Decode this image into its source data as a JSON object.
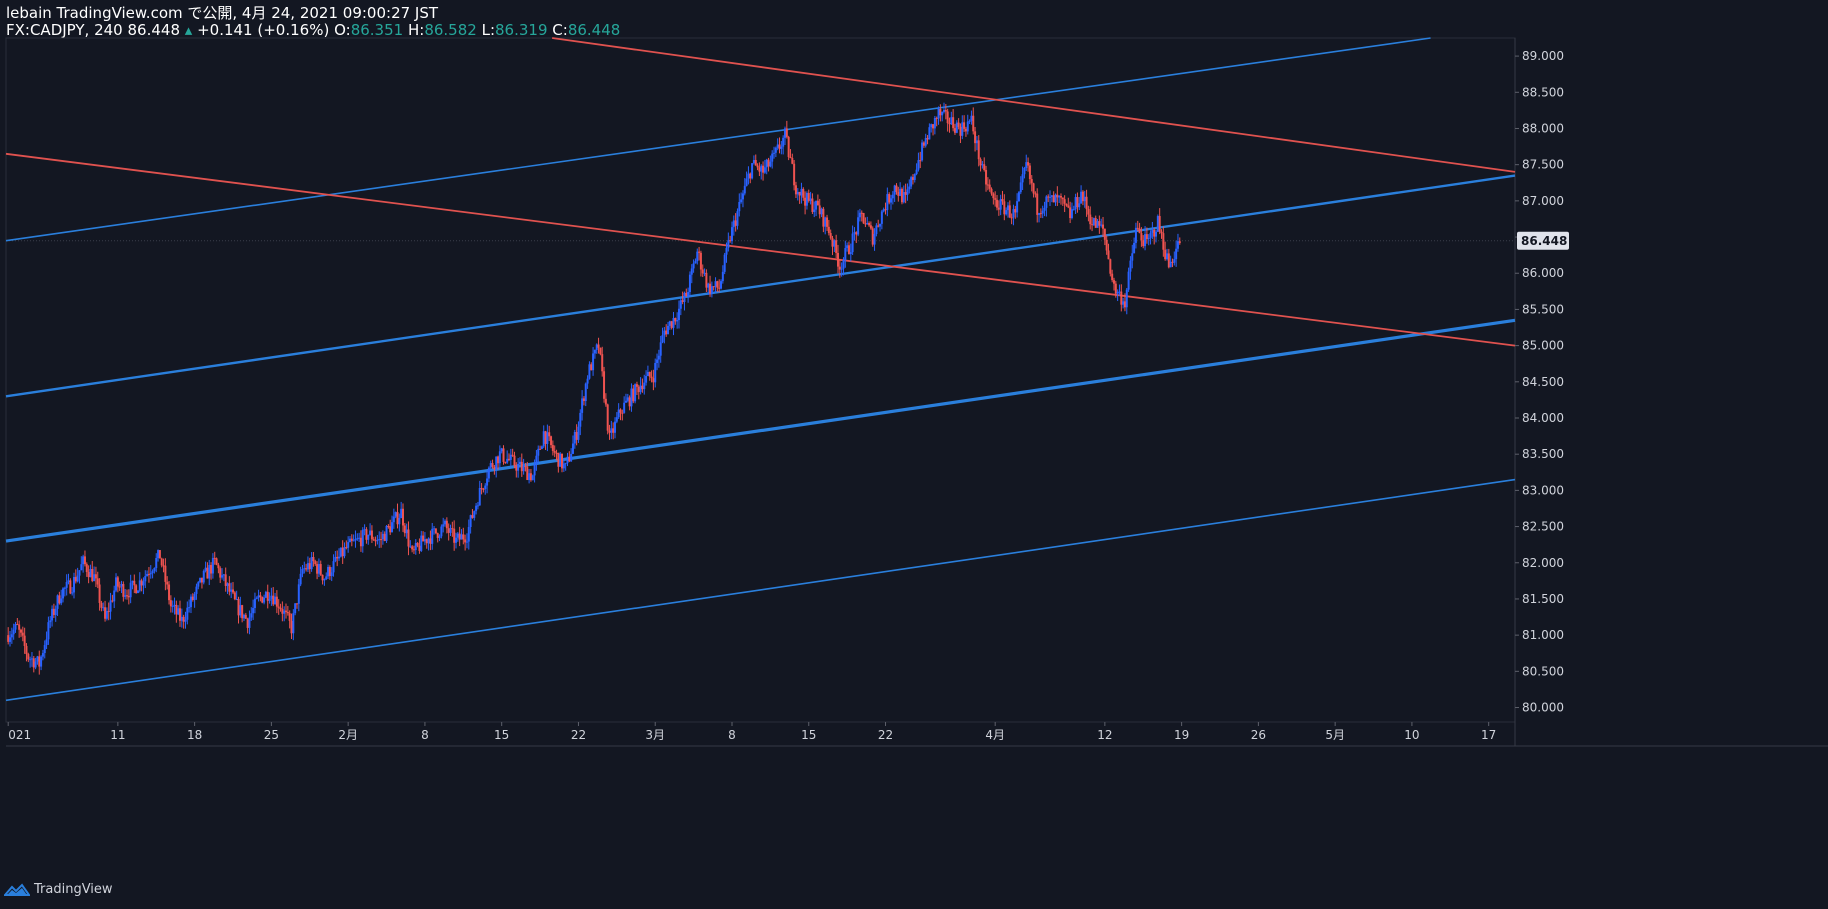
{
  "header": {
    "line1": "lebain TradingView.com で公開, 4月 24, 2021 09:00:27 JST",
    "symbol": "FX:CADJPY, 240",
    "last": "86.448",
    "change": "+0.141 (+0.16%)",
    "open_label": "O:",
    "open": "86.351",
    "high_label": "H:",
    "high": "86.582",
    "low_label": "L:",
    "low": "86.319",
    "close_label": "C:",
    "close": "86.448"
  },
  "footer": {
    "brand": "TradingView",
    "logo_icon": "tradingview-logo-icon"
  },
  "colors": {
    "background": "#131722",
    "up": "#2962ff",
    "down": "#ef5350",
    "blue_line": "#2a7fdc",
    "red_line": "#e0524f",
    "axis_text": "#d1d4dc",
    "price_tag_bg": "#e0e3eb"
  },
  "chart_data": {
    "type": "candlestick",
    "symbol": "FX:CADJPY",
    "interval": "240",
    "y_axis": {
      "ticks": [
        "80.000",
        "80.500",
        "81.000",
        "81.500",
        "82.000",
        "82.500",
        "83.000",
        "83.500",
        "84.000",
        "84.500",
        "85.000",
        "85.500",
        "86.000",
        "86.500",
        "87.000",
        "87.500",
        "88.000",
        "88.500",
        "89.000"
      ],
      "current_price": "86.448",
      "range": [
        79.8,
        89.25
      ]
    },
    "x_axis": {
      "ticks": [
        "021",
        "11",
        "18",
        "25",
        "2月",
        "8",
        "15",
        "22",
        "3月",
        "8",
        "15",
        "22",
        "4月",
        "12",
        "19",
        "26",
        "5月",
        "10",
        "17"
      ],
      "tick_days": [
        0,
        10,
        17,
        24,
        31,
        38,
        45,
        52,
        59,
        66,
        73,
        80,
        90,
        100,
        107,
        114,
        121,
        128,
        135
      ],
      "range_days": [
        -0.2,
        137.4
      ]
    },
    "close_path": [
      [
        0,
        81.0
      ],
      [
        1,
        81.1
      ],
      [
        2,
        80.7
      ],
      [
        3,
        80.6
      ],
      [
        4,
        81.2
      ],
      [
        5,
        81.6
      ],
      [
        6,
        81.7
      ],
      [
        7,
        82.0
      ],
      [
        8,
        81.8
      ],
      [
        9,
        81.2
      ],
      [
        10,
        81.7
      ],
      [
        11,
        81.6
      ],
      [
        12,
        81.7
      ],
      [
        13,
        81.9
      ],
      [
        14,
        82.1
      ],
      [
        15,
        81.4
      ],
      [
        16,
        81.2
      ],
      [
        17,
        81.5
      ],
      [
        18,
        81.8
      ],
      [
        19,
        82.0
      ],
      [
        20,
        81.7
      ],
      [
        21,
        81.4
      ],
      [
        22,
        81.2
      ],
      [
        23,
        81.5
      ],
      [
        24,
        81.6
      ],
      [
        25,
        81.4
      ],
      [
        26,
        81.1
      ],
      [
        27,
        81.9
      ],
      [
        28,
        82.0
      ],
      [
        29,
        81.8
      ],
      [
        30,
        82.0
      ],
      [
        31,
        82.2
      ],
      [
        32,
        82.3
      ],
      [
        33,
        82.4
      ],
      [
        34,
        82.3
      ],
      [
        35,
        82.5
      ],
      [
        36,
        82.7
      ],
      [
        37,
        82.1
      ],
      [
        38,
        82.3
      ],
      [
        39,
        82.4
      ],
      [
        40,
        82.5
      ],
      [
        41,
        82.3
      ],
      [
        42,
        82.4
      ],
      [
        43,
        82.9
      ],
      [
        44,
        83.3
      ],
      [
        45,
        83.5
      ],
      [
        46,
        83.4
      ],
      [
        47,
        83.3
      ],
      [
        48,
        83.2
      ],
      [
        49,
        83.8
      ],
      [
        50,
        83.5
      ],
      [
        51,
        83.3
      ],
      [
        52,
        83.8
      ],
      [
        53,
        84.6
      ],
      [
        54,
        85.0
      ],
      [
        55,
        83.7
      ],
      [
        56,
        84.1
      ],
      [
        57,
        84.3
      ],
      [
        58,
        84.5
      ],
      [
        59,
        84.6
      ],
      [
        60,
        85.2
      ],
      [
        61,
        85.4
      ],
      [
        62,
        85.7
      ],
      [
        63,
        86.3
      ],
      [
        64,
        85.8
      ],
      [
        65,
        85.8
      ],
      [
        66,
        86.5
      ],
      [
        67,
        87.0
      ],
      [
        68,
        87.5
      ],
      [
        69,
        87.4
      ],
      [
        70,
        87.6
      ],
      [
        71,
        87.9
      ],
      [
        72,
        87.2
      ],
      [
        73,
        87.0
      ],
      [
        74,
        86.9
      ],
      [
        75,
        86.6
      ],
      [
        76,
        86.1
      ],
      [
        77,
        86.4
      ],
      [
        78,
        86.8
      ],
      [
        79,
        86.5
      ],
      [
        80,
        86.9
      ],
      [
        81,
        87.2
      ],
      [
        82,
        87.0
      ],
      [
        83,
        87.5
      ],
      [
        84,
        87.9
      ],
      [
        85,
        88.2
      ],
      [
        86,
        88.1
      ],
      [
        87,
        88.0
      ],
      [
        88,
        88.1
      ],
      [
        89,
        87.4
      ],
      [
        90,
        87.0
      ],
      [
        91,
        86.9
      ],
      [
        92,
        86.8
      ],
      [
        93,
        87.5
      ],
      [
        94,
        86.9
      ],
      [
        95,
        87.0
      ],
      [
        96,
        87.0
      ],
      [
        97,
        86.8
      ],
      [
        98,
        87.1
      ],
      [
        99,
        86.7
      ],
      [
        100,
        86.6
      ],
      [
        101,
        85.8
      ],
      [
        102,
        85.6
      ],
      [
        103,
        86.6
      ],
      [
        104,
        86.4
      ],
      [
        105,
        86.7
      ],
      [
        106,
        86.1
      ],
      [
        107,
        86.448
      ]
    ],
    "trendlines": [
      {
        "color": "blue",
        "width": 1.6,
        "p1": [
          -0.2,
          86.45
        ],
        "p2": [
          129.7,
          89.25
        ]
      },
      {
        "color": "blue",
        "width": 2.4,
        "p1": [
          -0.2,
          84.3
        ],
        "p2": [
          137.4,
          87.35
        ]
      },
      {
        "color": "blue",
        "width": 3.2,
        "p1": [
          -0.2,
          82.3
        ],
        "p2": [
          137.4,
          85.35
        ]
      },
      {
        "color": "blue",
        "width": 1.6,
        "p1": [
          -0.2,
          80.1
        ],
        "p2": [
          137.4,
          83.15
        ]
      },
      {
        "color": "red",
        "width": 1.8,
        "p1": [
          -0.2,
          87.65
        ],
        "p2": [
          137.4,
          85.0
        ]
      },
      {
        "color": "red",
        "width": 1.8,
        "p1": [
          49.6,
          89.25
        ],
        "p2": [
          137.4,
          87.4
        ]
      }
    ]
  }
}
